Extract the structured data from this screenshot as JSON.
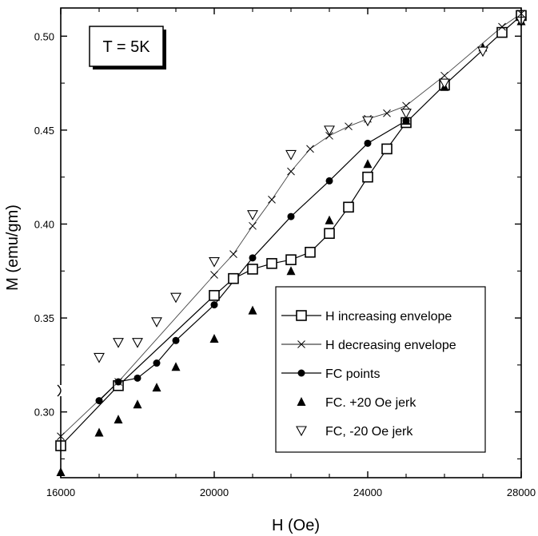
{
  "chart_data": {
    "type": "scatter",
    "xlabel": "H (Oe)",
    "ylabel": "M (emu/gm)",
    "xlim": [
      16000,
      28000
    ],
    "ylim": [
      0.265,
      0.515
    ],
    "x_ticks": [
      16000,
      20000,
      24000,
      28000
    ],
    "x_tick_labels": [
      "16000",
      "20000",
      "24000",
      "28000"
    ],
    "y_ticks": [
      0.3,
      0.35,
      0.4,
      0.45,
      0.5
    ],
    "y_tick_labels": [
      "0.30",
      "0.35",
      "0.40",
      "0.45",
      "0.50"
    ],
    "annotation": "T = 5K",
    "legend_position": "lower-right",
    "series": [
      {
        "name": "H increasing envelope",
        "marker": "open-square",
        "line": true,
        "x": [
          16000,
          17500,
          20000,
          20500,
          21000,
          21500,
          22000,
          22500,
          23000,
          23500,
          24000,
          24500,
          25000,
          26000,
          27500,
          28000
        ],
        "y": [
          0.282,
          0.314,
          0.362,
          0.371,
          0.376,
          0.379,
          0.381,
          0.385,
          0.395,
          0.409,
          0.425,
          0.44,
          0.454,
          0.474,
          0.502,
          0.511
        ]
      },
      {
        "name": "H decreasing envelope",
        "marker": "cross",
        "line": true,
        "x": [
          16000,
          17500,
          20000,
          20500,
          21000,
          21500,
          22000,
          22500,
          23000,
          23500,
          24000,
          24500,
          25000,
          26000,
          27500,
          28000
        ],
        "y": [
          0.287,
          0.316,
          0.373,
          0.384,
          0.399,
          0.413,
          0.428,
          0.44,
          0.447,
          0.452,
          0.456,
          0.459,
          0.463,
          0.479,
          0.505,
          0.512
        ]
      },
      {
        "name": "FC points",
        "marker": "filled-circle",
        "line": true,
        "x": [
          17000,
          17500,
          18000,
          18500,
          19000,
          20000,
          21000,
          22000,
          23000,
          24000,
          25000
        ],
        "y": [
          0.306,
          0.316,
          0.318,
          0.326,
          0.338,
          0.357,
          0.382,
          0.404,
          0.423,
          0.443,
          0.455
        ]
      },
      {
        "name": "FC. +20 Oe jerk",
        "marker": "filled-triangle-up",
        "line": false,
        "x": [
          16000,
          17000,
          17500,
          18000,
          18500,
          19000,
          20000,
          21000,
          22000,
          23000,
          24000,
          25000,
          26000,
          27000,
          28000
        ],
        "y": [
          0.268,
          0.289,
          0.296,
          0.304,
          0.313,
          0.324,
          0.339,
          0.354,
          0.375,
          0.402,
          0.432,
          0.455,
          0.473,
          0.494,
          0.508
        ]
      },
      {
        "name": "FC, -20 Oe jerk",
        "marker": "open-triangle-down",
        "line": false,
        "x": [
          17000,
          17500,
          18000,
          18500,
          19000,
          20000,
          21000,
          22000,
          23000,
          24000,
          25000,
          26000,
          27000,
          28000
        ],
        "y": [
          0.329,
          0.337,
          0.337,
          0.348,
          0.361,
          0.38,
          0.405,
          0.437,
          0.45,
          0.455,
          0.459,
          0.475,
          0.492,
          0.508
        ]
      }
    ]
  }
}
